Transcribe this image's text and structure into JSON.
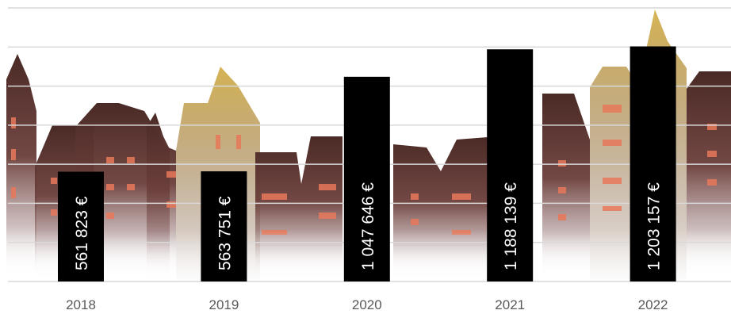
{
  "chart_data": {
    "type": "bar",
    "categories": [
      "2018",
      "2019",
      "2020",
      "2021",
      "2022"
    ],
    "values": [
      561823,
      563751,
      1047646,
      1188139,
      1203157
    ],
    "value_labels": [
      "561 823 €",
      "563 751 €",
      "1 047 646 €",
      "1 188 139 €",
      "1 203 157 €"
    ],
    "title": "",
    "xlabel": "",
    "ylabel": "",
    "ylim": [
      0,
      1400000
    ],
    "grid": true,
    "legend": "none",
    "colors": {
      "bar": "#000000",
      "gridline": "#d9d9d9",
      "label": "#ffffff",
      "tick": "#595959",
      "buildings_dark": "#4a2a26",
      "buildings_gold": "#c9a24a",
      "windows": "#e8785a"
    }
  }
}
